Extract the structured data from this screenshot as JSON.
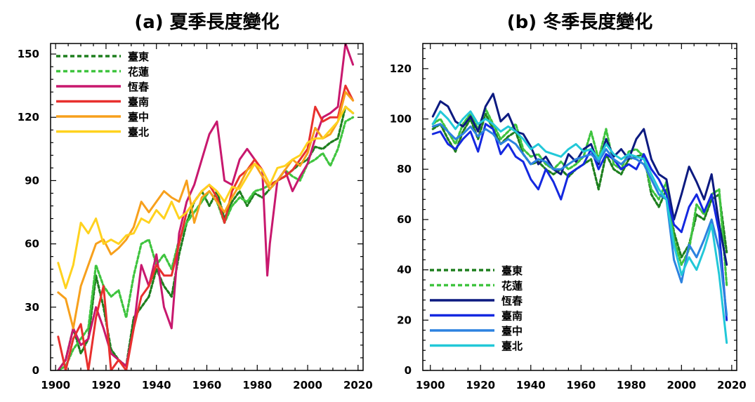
{
  "chart_data": [
    {
      "type": "line",
      "title": "(a) 夏季長度變化",
      "xlabel": "",
      "ylabel": "",
      "xlim": [
        1898,
        2022
      ],
      "ylim": [
        0,
        155
      ],
      "xticks": [
        1900,
        1920,
        1940,
        1960,
        1980,
        2000,
        2020
      ],
      "yticks": [
        0,
        30,
        60,
        90,
        120,
        150
      ],
      "grid": false,
      "legend_position": "top-left",
      "series": [
        {
          "name": "臺東",
          "color": "#1e7f1e",
          "dash": "dashed",
          "x": [
            1901,
            1904,
            1907,
            1910,
            1913,
            1916,
            1919,
            1922,
            1925,
            1928,
            1931,
            1934,
            1937,
            1940,
            1943,
            1946,
            1949,
            1952,
            1955,
            1958,
            1961,
            1964,
            1967,
            1970,
            1973,
            1976,
            1979,
            1982,
            1985,
            1988,
            1991,
            1994,
            1997,
            2000,
            2003,
            2006,
            2009,
            2012,
            2015,
            2018
          ],
          "y": [
            0,
            5,
            20,
            8,
            15,
            45,
            30,
            10,
            5,
            2,
            25,
            30,
            35,
            48,
            40,
            35,
            55,
            70,
            80,
            85,
            78,
            85,
            72,
            80,
            85,
            78,
            84,
            82,
            86,
            90,
            92,
            95,
            98,
            100,
            106,
            105,
            108,
            110,
            125,
            122
          ]
        },
        {
          "name": "花蓮",
          "color": "#3fc43f",
          "dash": "dashed",
          "x": [
            1901,
            1904,
            1907,
            1910,
            1913,
            1916,
            1919,
            1922,
            1925,
            1928,
            1931,
            1934,
            1937,
            1940,
            1943,
            1946,
            1949,
            1952,
            1955,
            1958,
            1961,
            1964,
            1967,
            1970,
            1973,
            1976,
            1979,
            1982,
            1985,
            1988,
            1991,
            1994,
            1997,
            2000,
            2003,
            2006,
            2009,
            2012,
            2015,
            2018
          ],
          "y": [
            0,
            2,
            10,
            15,
            20,
            50,
            40,
            35,
            38,
            25,
            45,
            60,
            62,
            50,
            55,
            48,
            62,
            70,
            75,
            80,
            85,
            80,
            70,
            78,
            82,
            80,
            85,
            86,
            88,
            90,
            95,
            92,
            90,
            98,
            100,
            103,
            97,
            105,
            118,
            120
          ]
        },
        {
          "name": "恆春",
          "color": "#c8186e",
          "dash": "solid",
          "x": [
            1901,
            1904,
            1907,
            1910,
            1913,
            1916,
            1919,
            1922,
            1925,
            1928,
            1931,
            1934,
            1937,
            1940,
            1943,
            1946,
            1949,
            1952,
            1955,
            1958,
            1961,
            1964,
            1967,
            1970,
            1973,
            1976,
            1979,
            1982,
            1984,
            1985,
            1988,
            1991,
            1994,
            1997,
            2000,
            2003,
            2006,
            2009,
            2012,
            2015,
            2018
          ],
          "y": [
            0,
            5,
            20,
            12,
            15,
            30,
            20,
            8,
            5,
            2,
            20,
            50,
            40,
            55,
            30,
            20,
            65,
            80,
            88,
            100,
            112,
            118,
            90,
            88,
            100,
            105,
            100,
            95,
            45,
            60,
            90,
            95,
            85,
            92,
            98,
            110,
            120,
            122,
            125,
            155,
            145
          ]
        },
        {
          "name": "臺南",
          "color": "#e8302e",
          "dash": "solid",
          "x": [
            1901,
            1904,
            1907,
            1910,
            1913,
            1916,
            1919,
            1922,
            1925,
            1928,
            1931,
            1934,
            1937,
            1940,
            1943,
            1946,
            1949,
            1952,
            1955,
            1958,
            1961,
            1964,
            1967,
            1970,
            1973,
            1976,
            1979,
            1982,
            1985,
            1988,
            1991,
            1994,
            1997,
            2000,
            2003,
            2006,
            2009,
            2012,
            2015,
            2018
          ],
          "y": [
            16,
            0,
            15,
            22,
            0,
            25,
            40,
            0,
            5,
            0,
            20,
            35,
            40,
            50,
            45,
            45,
            60,
            75,
            80,
            85,
            88,
            82,
            70,
            85,
            92,
            95,
            100,
            95,
            88,
            90,
            92,
            95,
            100,
            105,
            125,
            118,
            120,
            120,
            135,
            128
          ]
        },
        {
          "name": "臺中",
          "color": "#f7a01c",
          "dash": "solid",
          "x": [
            1901,
            1904,
            1907,
            1910,
            1913,
            1916,
            1919,
            1922,
            1925,
            1928,
            1931,
            1934,
            1937,
            1940,
            1943,
            1946,
            1949,
            1952,
            1955,
            1958,
            1961,
            1964,
            1967,
            1970,
            1973,
            1976,
            1979,
            1982,
            1985,
            1988,
            1991,
            1994,
            1997,
            2000,
            2003,
            2006,
            2009,
            2012,
            2015,
            2018
          ],
          "y": [
            37,
            34,
            20,
            40,
            50,
            60,
            62,
            55,
            58,
            62,
            68,
            80,
            75,
            80,
            85,
            82,
            80,
            90,
            70,
            82,
            85,
            80,
            75,
            82,
            88,
            95,
            98,
            92,
            86,
            90,
            95,
            100,
            97,
            103,
            115,
            110,
            112,
            118,
            132,
            128
          ]
        },
        {
          "name": "臺北",
          "color": "#ffd21e",
          "dash": "solid",
          "x": [
            1901,
            1904,
            1907,
            1910,
            1913,
            1916,
            1919,
            1922,
            1925,
            1928,
            1931,
            1934,
            1937,
            1940,
            1943,
            1946,
            1949,
            1952,
            1955,
            1958,
            1961,
            1964,
            1967,
            1970,
            1973,
            1976,
            1979,
            1982,
            1985,
            1988,
            1991,
            1994,
            1997,
            2000,
            2003,
            2006,
            2009,
            2012,
            2015,
            2018
          ],
          "y": [
            51,
            39,
            50,
            70,
            65,
            72,
            60,
            62,
            60,
            64,
            65,
            72,
            70,
            76,
            72,
            80,
            72,
            75,
            80,
            85,
            88,
            85,
            80,
            87,
            86,
            92,
            98,
            95,
            88,
            96,
            97,
            100,
            102,
            108,
            110,
            110,
            114,
            118,
            125,
            122
          ]
        }
      ]
    },
    {
      "type": "line",
      "title": "(b) 冬季長度變化",
      "xlabel": "",
      "ylabel": "",
      "xlim": [
        1897,
        2022
      ],
      "ylim": [
        0,
        130
      ],
      "xticks": [
        1900,
        1920,
        1940,
        1960,
        1980,
        2000,
        2020
      ],
      "yticks": [
        0,
        20,
        40,
        60,
        80,
        100,
        120
      ],
      "grid": false,
      "legend_position": "bottom-left",
      "series": [
        {
          "name": "臺東",
          "color": "#1e7f1e",
          "dash": "dashed",
          "x": [
            1901,
            1904,
            1907,
            1910,
            1913,
            1916,
            1919,
            1922,
            1925,
            1928,
            1931,
            1934,
            1937,
            1940,
            1943,
            1946,
            1949,
            1952,
            1955,
            1958,
            1961,
            1964,
            1967,
            1970,
            1973,
            1976,
            1979,
            1982,
            1985,
            1988,
            1991,
            1994,
            1997,
            2000,
            2003,
            2006,
            2009,
            2012,
            2015,
            2018
          ],
          "y": [
            96,
            98,
            92,
            87,
            95,
            100,
            92,
            102,
            96,
            90,
            93,
            95,
            86,
            82,
            83,
            80,
            78,
            80,
            77,
            80,
            82,
            84,
            72,
            86,
            80,
            78,
            84,
            85,
            86,
            70,
            65,
            72,
            55,
            45,
            50,
            62,
            60,
            68,
            70,
            47
          ]
        },
        {
          "name": "花蓮",
          "color": "#3fc43f",
          "dash": "dashed",
          "x": [
            1901,
            1904,
            1907,
            1910,
            1913,
            1916,
            1919,
            1922,
            1925,
            1928,
            1931,
            1934,
            1937,
            1940,
            1943,
            1946,
            1949,
            1952,
            1955,
            1958,
            1961,
            1964,
            1967,
            1970,
            1973,
            1976,
            1979,
            1982,
            1985,
            1988,
            1991,
            1994,
            1997,
            2000,
            2003,
            2006,
            2009,
            2012,
            2015,
            2018
          ],
          "y": [
            98,
            100,
            95,
            90,
            98,
            102,
            96,
            104,
            98,
            92,
            95,
            98,
            88,
            85,
            86,
            82,
            80,
            83,
            80,
            82,
            85,
            95,
            84,
            96,
            82,
            80,
            87,
            88,
            85,
            72,
            68,
            75,
            52,
            42,
            48,
            66,
            62,
            70,
            72,
            34
          ]
        },
        {
          "name": "恆春",
          "color": "#0c1a80",
          "dash": "solid",
          "x": [
            1901,
            1904,
            1907,
            1910,
            1913,
            1916,
            1919,
            1922,
            1925,
            1928,
            1931,
            1934,
            1937,
            1940,
            1943,
            1946,
            1949,
            1952,
            1955,
            1958,
            1961,
            1964,
            1967,
            1970,
            1973,
            1976,
            1979,
            1982,
            1985,
            1988,
            1991,
            1994,
            1997,
            2000,
            2003,
            2006,
            2009,
            2012,
            2015,
            2018
          ],
          "y": [
            101,
            107,
            105,
            99,
            97,
            101,
            95,
            105,
            110,
            99,
            102,
            95,
            94,
            89,
            82,
            85,
            80,
            78,
            86,
            83,
            88,
            90,
            82,
            92,
            85,
            88,
            84,
            92,
            96,
            84,
            78,
            76,
            60,
            70,
            81,
            75,
            68,
            78,
            58,
            42
          ]
        },
        {
          "name": "臺南",
          "color": "#1428e0",
          "dash": "solid",
          "x": [
            1901,
            1904,
            1907,
            1910,
            1913,
            1916,
            1919,
            1922,
            1925,
            1928,
            1931,
            1934,
            1937,
            1940,
            1943,
            1946,
            1949,
            1952,
            1955,
            1958,
            1961,
            1964,
            1967,
            1970,
            1973,
            1976,
            1979,
            1982,
            1985,
            1988,
            1991,
            1994,
            1997,
            2000,
            2003,
            2006,
            2009,
            2012,
            2015,
            2018
          ],
          "y": [
            94,
            95,
            90,
            88,
            92,
            95,
            87,
            98,
            96,
            86,
            90,
            85,
            83,
            76,
            72,
            80,
            75,
            68,
            78,
            80,
            82,
            88,
            80,
            86,
            84,
            80,
            82,
            80,
            86,
            80,
            76,
            70,
            58,
            55,
            65,
            70,
            63,
            70,
            55,
            20
          ]
        },
        {
          "name": "臺中",
          "color": "#2c82e0",
          "dash": "solid",
          "x": [
            1901,
            1904,
            1907,
            1910,
            1913,
            1916,
            1919,
            1922,
            1925,
            1928,
            1931,
            1934,
            1937,
            1940,
            1943,
            1946,
            1949,
            1952,
            1955,
            1958,
            1961,
            1964,
            1967,
            1970,
            1973,
            1976,
            1979,
            1982,
            1985,
            1988,
            1991,
            1994,
            1997,
            2000,
            2003,
            2006,
            2009,
            2012,
            2015,
            2018
          ],
          "y": [
            97,
            98,
            95,
            92,
            94,
            97,
            93,
            96,
            94,
            90,
            92,
            90,
            86,
            82,
            84,
            83,
            80,
            80,
            82,
            84,
            85,
            86,
            83,
            88,
            84,
            82,
            85,
            84,
            82,
            76,
            70,
            68,
            44,
            35,
            50,
            45,
            52,
            60,
            48,
            22
          ]
        },
        {
          "name": "臺北",
          "color": "#22c8d8",
          "dash": "solid",
          "x": [
            1901,
            1904,
            1907,
            1910,
            1913,
            1916,
            1919,
            1922,
            1925,
            1928,
            1931,
            1934,
            1937,
            1940,
            1943,
            1946,
            1949,
            1952,
            1955,
            1958,
            1961,
            1964,
            1967,
            1970,
            1973,
            1976,
            1979,
            1982,
            1985,
            1988,
            1991,
            1994,
            1997,
            2000,
            2003,
            2006,
            2009,
            2012,
            2015,
            2018
          ],
          "y": [
            98,
            103,
            100,
            96,
            100,
            103,
            98,
            100,
            98,
            95,
            97,
            95,
            92,
            88,
            90,
            87,
            86,
            85,
            88,
            90,
            87,
            88,
            84,
            90,
            86,
            84,
            86,
            85,
            84,
            78,
            72,
            68,
            50,
            38,
            45,
            40,
            48,
            58,
            38,
            11
          ]
        }
      ]
    }
  ]
}
